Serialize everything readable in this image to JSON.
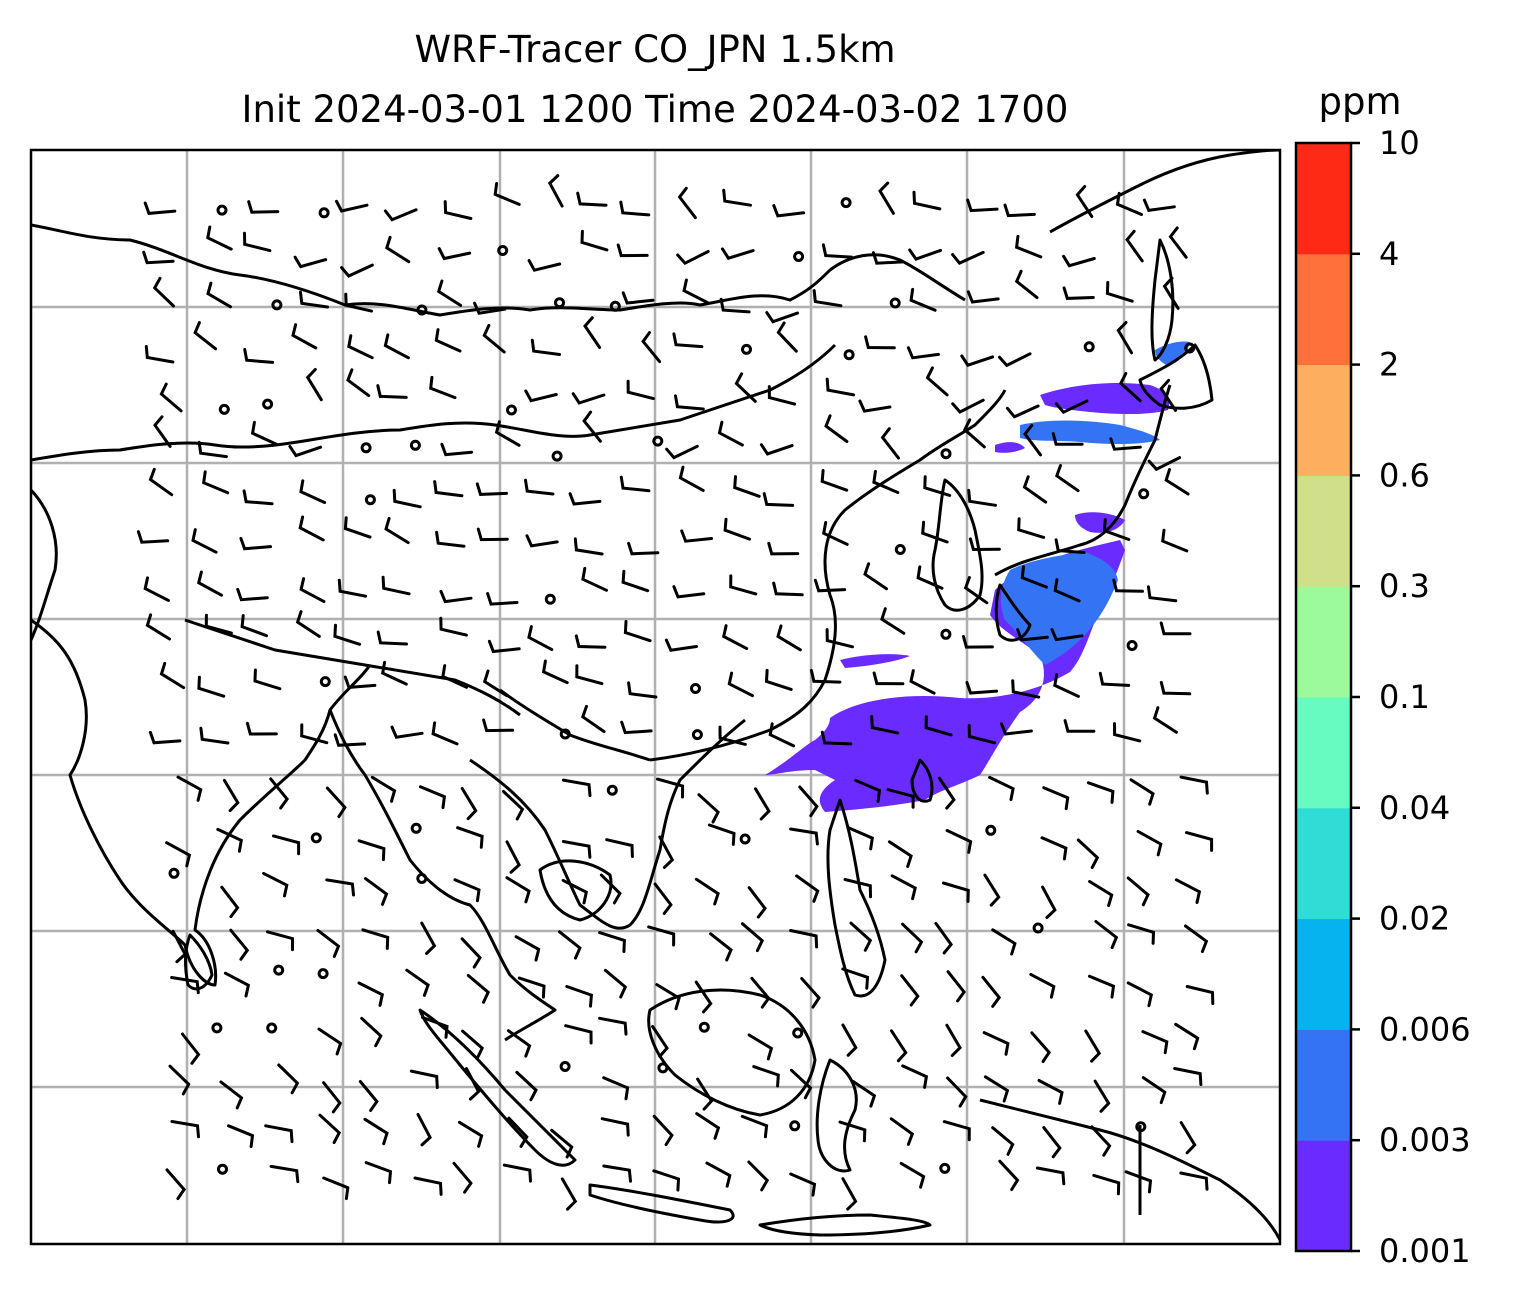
{
  "title_line1": "WRF-Tracer CO_JPN 1.5km",
  "title_line2": "Init 2024-03-01 1200 Time 2024-03-02 1700",
  "colorbar": {
    "unit": "ppm",
    "levels": [
      "0.001",
      "0.003",
      "0.006",
      "0.02",
      "0.04",
      "0.1",
      "0.3",
      "0.6",
      "2",
      "4",
      "10"
    ],
    "colors": [
      "#6a2bff",
      "#3573f5",
      "#06b3ee",
      "#30dcd6",
      "#67fbc1",
      "#9cfa9a",
      "#cfe089",
      "#feae5f",
      "#ff703a",
      "#ff2a15"
    ]
  },
  "chart_data": {
    "type": "heatmap",
    "title": "WRF-Tracer CO_JPN 1.5km / Init 2024-03-01 1200 Time 2024-03-02 1700",
    "variable": "CO tracer concentration",
    "unit": "ppm",
    "colorbar_levels": [
      0.001,
      0.003,
      0.006,
      0.02,
      0.04,
      0.1,
      0.3,
      0.6,
      2,
      4,
      10
    ],
    "overlay": "wind barbs and calm-wind circles",
    "grid": true,
    "plume_extent_note": "tracer values in 0.001–0.006 ppm band over Japan and western Pacific"
  }
}
